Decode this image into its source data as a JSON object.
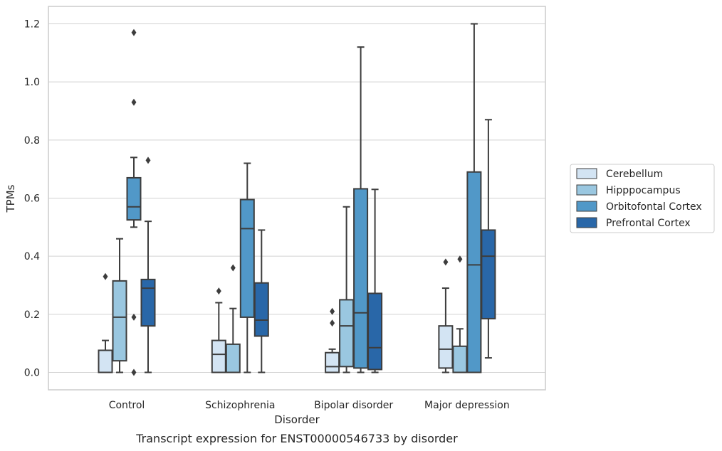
{
  "chart_data": {
    "type": "box",
    "caption": "Transcript expression for ENST00000546733 by disorder",
    "xlabel": "Disorder",
    "ylabel": "TPMs",
    "ylim": [
      -0.06,
      1.26
    ],
    "yticks": [
      0.0,
      0.2,
      0.4,
      0.6,
      0.8,
      1.0,
      1.2
    ],
    "ytick_labels": [
      "0.0",
      "0.2",
      "0.4",
      "0.6",
      "0.8",
      "1.0",
      "1.2"
    ],
    "grid": "horizontal",
    "legend_position": "right",
    "categories": [
      "Control",
      "Schizophrenia",
      "Bipolar disorder",
      "Major depression"
    ],
    "series": [
      {
        "name": "Cerebellum",
        "color": "#d3e4f3",
        "boxes": [
          {
            "whislo": 0.0,
            "q1": 0.0,
            "med": 0.0,
            "q3": 0.076,
            "whishi": 0.11,
            "fliers": [
              0.33
            ]
          },
          {
            "whislo": 0.0,
            "q1": 0.0,
            "med": 0.062,
            "q3": 0.11,
            "whishi": 0.24,
            "fliers": [
              0.28
            ]
          },
          {
            "whislo": 0.0,
            "q1": 0.0,
            "med": 0.02,
            "q3": 0.068,
            "whishi": 0.08,
            "fliers": [
              0.17,
              0.21
            ]
          },
          {
            "whislo": 0.0,
            "q1": 0.015,
            "med": 0.08,
            "q3": 0.16,
            "whishi": 0.29,
            "fliers": [
              0.38
            ]
          }
        ]
      },
      {
        "name": "Hipppocampus",
        "color": "#9ac7e0",
        "boxes": [
          {
            "whislo": 0.0,
            "q1": 0.04,
            "med": 0.19,
            "q3": 0.315,
            "whishi": 0.46,
            "fliers": []
          },
          {
            "whislo": 0.0,
            "q1": 0.0,
            "med": 0.0,
            "q3": 0.097,
            "whishi": 0.22,
            "fliers": [
              0.36
            ]
          },
          {
            "whislo": 0.0,
            "q1": 0.02,
            "med": 0.16,
            "q3": 0.25,
            "whishi": 0.57,
            "fliers": []
          },
          {
            "whislo": 0.0,
            "q1": 0.0,
            "med": 0.0,
            "q3": 0.09,
            "whishi": 0.15,
            "fliers": [
              0.39
            ]
          }
        ]
      },
      {
        "name": "Orbitofontal Cortex",
        "color": "#5198c8",
        "boxes": [
          {
            "whislo": 0.5,
            "q1": 0.525,
            "med": 0.57,
            "q3": 0.67,
            "whishi": 0.74,
            "fliers": [
              0.0,
              0.19,
              0.93,
              1.17
            ]
          },
          {
            "whislo": 0.0,
            "q1": 0.19,
            "med": 0.495,
            "q3": 0.595,
            "whishi": 0.72,
            "fliers": []
          },
          {
            "whislo": 0.0,
            "q1": 0.015,
            "med": 0.205,
            "q3": 0.632,
            "whishi": 1.12,
            "fliers": []
          },
          {
            "whislo": 0.0,
            "q1": 0.0,
            "med": 0.37,
            "q3": 0.69,
            "whishi": 1.2,
            "fliers": []
          }
        ]
      },
      {
        "name": "Prefrontal Cortex",
        "color": "#2967a8",
        "boxes": [
          {
            "whislo": 0.0,
            "q1": 0.16,
            "med": 0.29,
            "q3": 0.32,
            "whishi": 0.52,
            "fliers": [
              0.73
            ]
          },
          {
            "whislo": 0.0,
            "q1": 0.125,
            "med": 0.18,
            "q3": 0.308,
            "whishi": 0.49,
            "fliers": []
          },
          {
            "whislo": 0.0,
            "q1": 0.01,
            "med": 0.085,
            "q3": 0.272,
            "whishi": 0.63,
            "fliers": []
          },
          {
            "whislo": 0.05,
            "q1": 0.185,
            "med": 0.4,
            "q3": 0.49,
            "whishi": 0.87,
            "fliers": []
          }
        ]
      }
    ]
  }
}
